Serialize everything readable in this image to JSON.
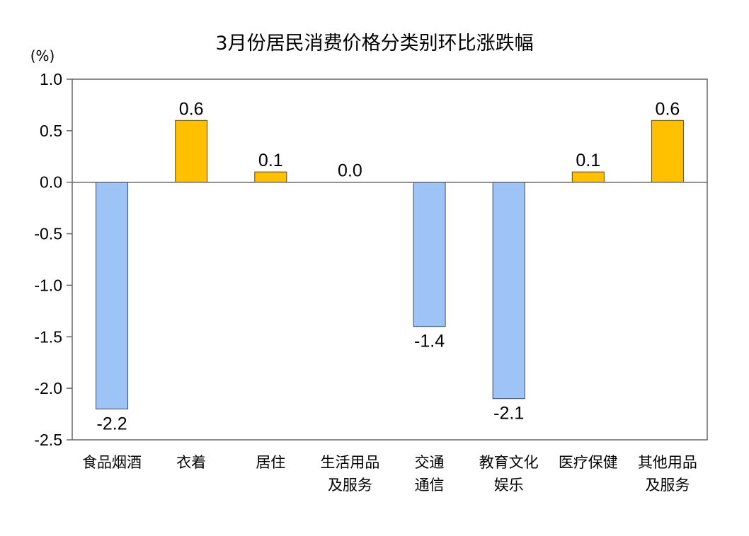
{
  "chart_data": {
    "type": "bar",
    "title": "3月份居民消费价格分类别环比涨跌幅",
    "unit_label": "(%)",
    "categories": [
      [
        "食品烟酒"
      ],
      [
        "衣着"
      ],
      [
        "居住"
      ],
      [
        "生活用品",
        "及服务"
      ],
      [
        "交通",
        "通信"
      ],
      [
        "教育文化",
        "娱乐"
      ],
      [
        "医疗保健"
      ],
      [
        "其他用品",
        "及服务"
      ]
    ],
    "values": [
      -2.2,
      0.6,
      0.1,
      0.0,
      -1.4,
      -2.1,
      0.1,
      0.6
    ],
    "value_labels": [
      "-2.2",
      "0.6",
      "0.1",
      "0.0",
      "-1.4",
      "-2.1",
      "0.1",
      "0.6"
    ],
    "ylim": [
      -2.5,
      1.0
    ],
    "yticks": [
      1.0,
      0.5,
      0.0,
      -0.5,
      -1.0,
      -1.5,
      -2.0,
      -2.5
    ],
    "ytick_labels": [
      "1.0",
      "0.5",
      "0.0",
      "-0.5",
      "-1.0",
      "-1.5",
      "-2.0",
      "-2.5"
    ],
    "grid": false,
    "legend": "none",
    "colors": {
      "positive": "#FFC000",
      "negative": "#9DC3F7",
      "positive_stroke": "#5a4a10",
      "negative_stroke": "#3a4a60",
      "axis": "#666666"
    }
  }
}
